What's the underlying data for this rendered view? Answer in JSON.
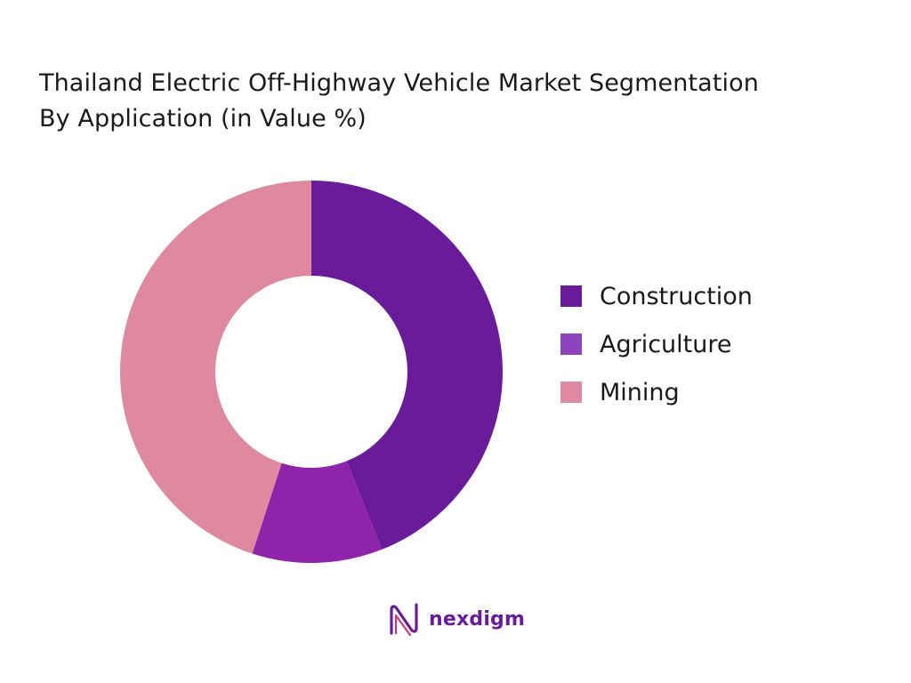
{
  "title_lines": [
    "Thailand Electric Off-Highway Vehicle Market Segmentation",
    "By Application (in Value %)"
  ],
  "chart_data": {
    "type": "pie",
    "variant": "donut",
    "title": "Thailand Electric Off-Highway Vehicle Market Segmentation By Application (in Value %)",
    "categories": [
      "Construction",
      "Agriculture",
      "Mining"
    ],
    "values": [
      44,
      11,
      45
    ],
    "colors": [
      "#6a1b9a",
      "#8e24aa",
      "#de899f"
    ],
    "legend_colors": [
      "#6a1b9a",
      "#8e44bd",
      "#de899f"
    ],
    "legend_position": "right",
    "start_angle": "top"
  },
  "brand": {
    "name": "nexdigm",
    "icon": "nexdigm-logo-icon",
    "color": "#6a1b9a"
  }
}
